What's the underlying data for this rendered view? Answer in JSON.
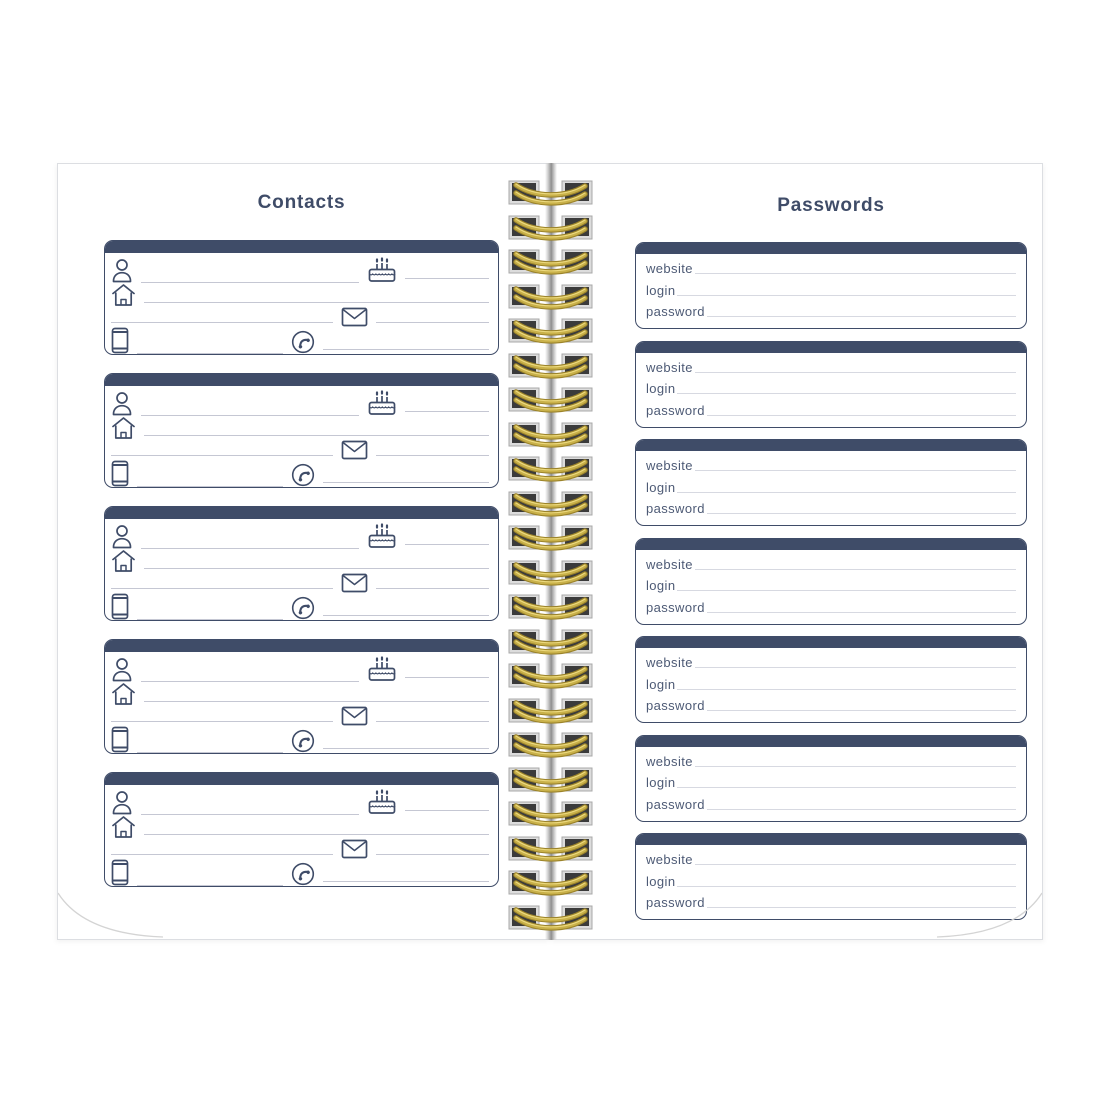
{
  "notebook": {
    "background": "#ffffff",
    "colors": {
      "navy": "#3f4c68",
      "label_text": "#4d5a75",
      "contact_line": "#c5c7d3",
      "password_line": "#d7d9e1",
      "page_edge": "#dcdee2",
      "gold_wire": "#c9b14a",
      "gold_wire_dark": "#9b832a",
      "gold_wire_light": "#ecd97e",
      "hole_dark": "#3b3b3b",
      "hole_frame": "#dcdcdc"
    }
  },
  "contacts": {
    "title": "Contacts",
    "row_icons": [
      {
        "left_icon": "person-icon",
        "right_icon": "birthday-cake-icon"
      },
      {
        "left_icon": "home-icon"
      },
      {
        "mid_icon": "envelope-icon"
      },
      {
        "left_icon": "mobile-phone-icon",
        "mid_icon": "telephone-icon"
      }
    ],
    "cards": [
      {
        "person": "",
        "birthday_cake": "",
        "home": "",
        "envelope": "",
        "mobile_phone": "",
        "telephone": ""
      },
      {
        "person": "",
        "birthday_cake": "",
        "home": "",
        "envelope": "",
        "mobile_phone": "",
        "telephone": ""
      },
      {
        "person": "",
        "birthday_cake": "",
        "home": "",
        "envelope": "",
        "mobile_phone": "",
        "telephone": ""
      },
      {
        "person": "",
        "birthday_cake": "",
        "home": "",
        "envelope": "",
        "mobile_phone": "",
        "telephone": ""
      },
      {
        "person": "",
        "birthday_cake": "",
        "home": "",
        "envelope": "",
        "mobile_phone": "",
        "telephone": ""
      }
    ]
  },
  "passwords": {
    "title": "Passwords",
    "field_labels": [
      "website",
      "login",
      "password"
    ],
    "cards": [
      {
        "website": "",
        "login": "",
        "password": ""
      },
      {
        "website": "",
        "login": "",
        "password": ""
      },
      {
        "website": "",
        "login": "",
        "password": ""
      },
      {
        "website": "",
        "login": "",
        "password": ""
      },
      {
        "website": "",
        "login": "",
        "password": ""
      },
      {
        "website": "",
        "login": "",
        "password": ""
      },
      {
        "website": "",
        "login": "",
        "password": ""
      }
    ]
  },
  "spine": {
    "coil_count": 22
  }
}
